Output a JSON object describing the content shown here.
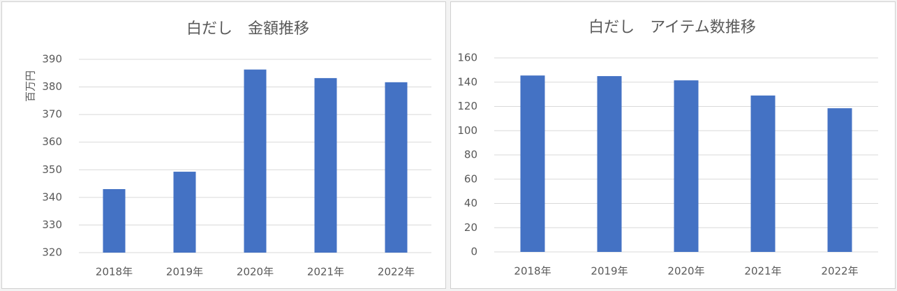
{
  "chart_data": [
    {
      "type": "bar",
      "title": "白だし　金額推移",
      "ylabel": "百万円",
      "categories": [
        "2018年",
        "2019年",
        "2020年",
        "2021年",
        "2022年"
      ],
      "values": [
        343,
        349.3,
        386.3,
        383.2,
        381.7
      ],
      "color": "#4472c4",
      "ylim": [
        320,
        390
      ],
      "yticks": [
        320,
        330,
        340,
        350,
        360,
        370,
        380,
        390
      ],
      "grid": true
    },
    {
      "type": "bar",
      "title": "白だし　アイテム数推移",
      "categories": [
        "2018年",
        "2019年",
        "2020年",
        "2021年",
        "2022年"
      ],
      "values": [
        145.5,
        145,
        141.5,
        129,
        118.5
      ],
      "color": "#4472c4",
      "ylim": [
        0,
        160
      ],
      "yticks": [
        0,
        20,
        40,
        60,
        80,
        100,
        120,
        140,
        160
      ],
      "grid": true
    }
  ]
}
